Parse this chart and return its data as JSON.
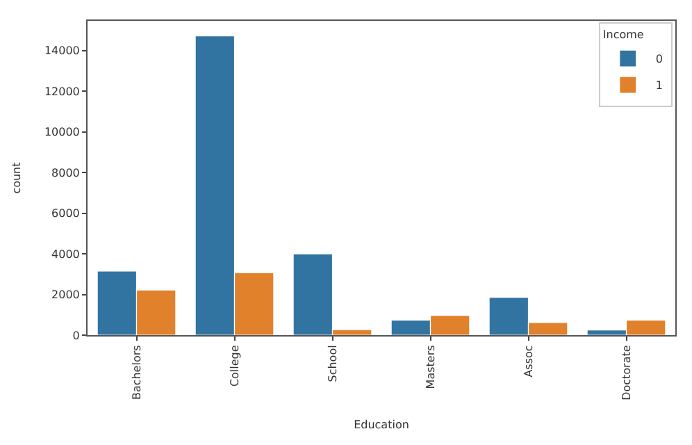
{
  "chart_data": {
    "type": "bar",
    "xlabel": "Education",
    "ylabel": "count",
    "legend_title": "Income",
    "categories": [
      "Bachelors",
      "College",
      "School",
      "Masters",
      "Assoc",
      "Doctorate"
    ],
    "series": [
      {
        "name": "0",
        "color": "#3274a1",
        "values": [
          3150,
          14720,
          4000,
          740,
          1860,
          250
        ]
      },
      {
        "name": "1",
        "color": "#e1812c",
        "values": [
          2220,
          3070,
          270,
          970,
          620,
          740
        ]
      }
    ],
    "ylim": [
      0,
      15460
    ],
    "yticks": [
      0,
      2000,
      4000,
      6000,
      8000,
      10000,
      12000,
      14000
    ],
    "legend": "top right"
  }
}
